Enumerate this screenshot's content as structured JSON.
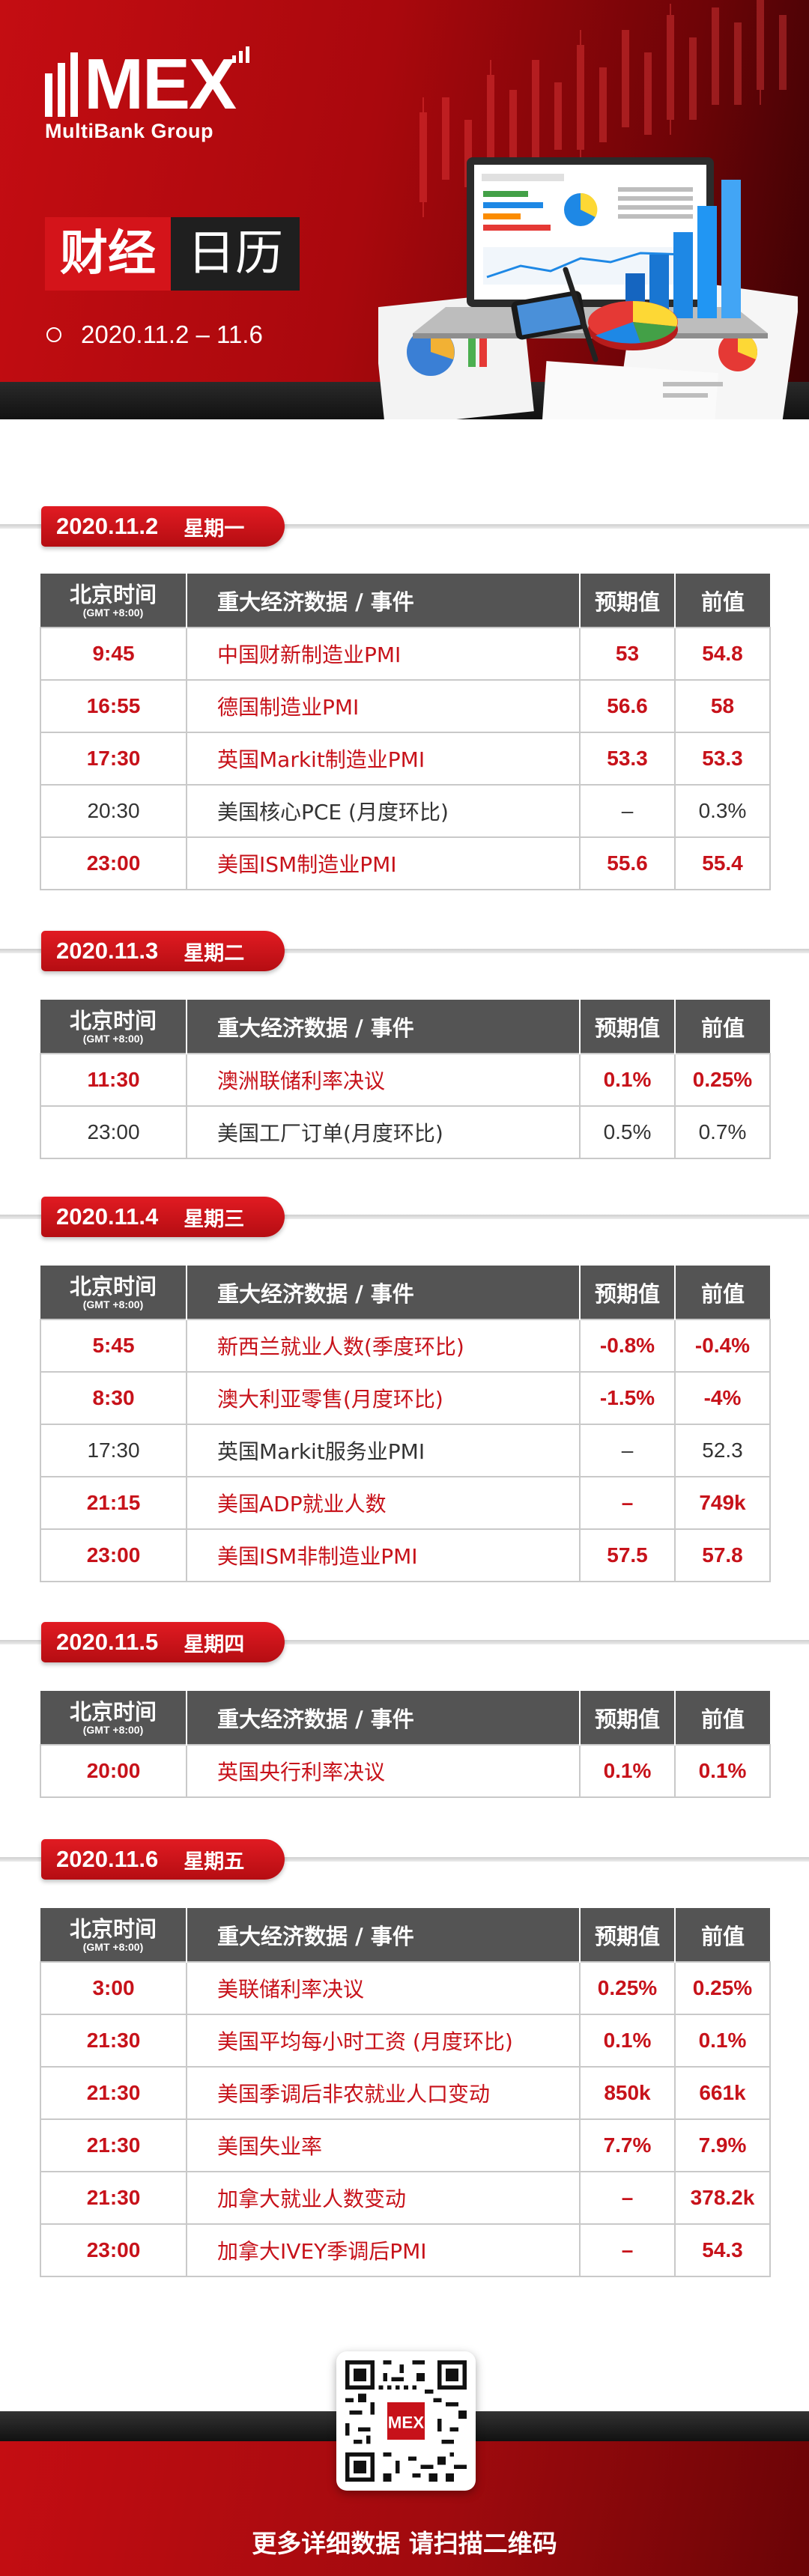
{
  "brand": {
    "logo_text": "MEX",
    "logo_sub": "MultiBank Group"
  },
  "header": {
    "title_part1": "财经",
    "title_part2": "日历",
    "date_range": "2020.11.2 – 11.6"
  },
  "table_headers": {
    "time": "北京时间",
    "time_sub": "(GMT +8:00)",
    "event": "重大经济数据 / 事件",
    "forecast": "预期值",
    "previous": "前值"
  },
  "days": [
    {
      "date": "2020.11.2",
      "weekday": "星期一",
      "rows": [
        {
          "time": "9:45",
          "event": "中国财新制造业PMI",
          "forecast": "53",
          "previous": "54.8",
          "highlight": true
        },
        {
          "time": "16:55",
          "event": "德国制造业PMI",
          "forecast": "56.6",
          "previous": "58",
          "highlight": true
        },
        {
          "time": "17:30",
          "event": "英国Markit制造业PMI",
          "forecast": "53.3",
          "previous": "53.3",
          "highlight": true
        },
        {
          "time": "20:30",
          "event": "美国核心PCE (月度环比)",
          "forecast": "–",
          "previous": "0.3%",
          "highlight": false
        },
        {
          "time": "23:00",
          "event": "美国ISM制造业PMI",
          "forecast": "55.6",
          "previous": "55.4",
          "highlight": true
        }
      ]
    },
    {
      "date": "2020.11.3",
      "weekday": "星期二",
      "rows": [
        {
          "time": "11:30",
          "event": "澳洲联储利率决议",
          "forecast": "0.1%",
          "previous": "0.25%",
          "highlight": true
        },
        {
          "time": "23:00",
          "event": "美国工厂订单(月度环比)",
          "forecast": "0.5%",
          "previous": "0.7%",
          "highlight": false
        }
      ]
    },
    {
      "date": "2020.11.4",
      "weekday": "星期三",
      "rows": [
        {
          "time": "5:45",
          "event": "新西兰就业人数(季度环比)",
          "forecast": "-0.8%",
          "previous": "-0.4%",
          "highlight": true
        },
        {
          "time": "8:30",
          "event": "澳大利亚零售(月度环比)",
          "forecast": "-1.5%",
          "previous": "-4%",
          "highlight": true
        },
        {
          "time": "17:30",
          "event": "英国Markit服务业PMI",
          "forecast": "–",
          "previous": "52.3",
          "highlight": false
        },
        {
          "time": "21:15",
          "event": "美国ADP就业人数",
          "forecast": "–",
          "previous": "749k",
          "highlight": true
        },
        {
          "time": "23:00",
          "event": "美国ISM非制造业PMI",
          "forecast": "57.5",
          "previous": "57.8",
          "highlight": true
        }
      ]
    },
    {
      "date": "2020.11.5",
      "weekday": "星期四",
      "rows": [
        {
          "time": "20:00",
          "event": "英国央行利率决议",
          "forecast": "0.1%",
          "previous": "0.1%",
          "highlight": true
        }
      ]
    },
    {
      "date": "2020.11.6",
      "weekday": "星期五",
      "rows": [
        {
          "time": "3:00",
          "event": "美联储利率决议",
          "forecast": "0.25%",
          "previous": "0.25%",
          "highlight": true
        },
        {
          "time": "21:30",
          "event": "美国平均每小时工资 (月度环比)",
          "forecast": "0.1%",
          "previous": "0.1%",
          "highlight": true
        },
        {
          "time": "21:30",
          "event": "美国季调后非农就业人口变动",
          "forecast": "850k",
          "previous": "661k",
          "highlight": true
        },
        {
          "time": "21:30",
          "event": "美国失业率",
          "forecast": "7.7%",
          "previous": "7.9%",
          "highlight": true
        },
        {
          "time": "21:30",
          "event": "加拿大就业人数变动",
          "forecast": "–",
          "previous": "378.2k",
          "highlight": true
        },
        {
          "time": "23:00",
          "event": "加拿大IVEY季调后PMI",
          "forecast": "–",
          "previous": "54.3",
          "highlight": true
        }
      ]
    }
  ],
  "footer": {
    "cta": "更多详细数据 请扫描二维码",
    "qr_icon": "qr-code-icon"
  },
  "colors": {
    "brand_red": "#c7121a",
    "header_gray": "#545454",
    "text_dark": "#333333"
  }
}
